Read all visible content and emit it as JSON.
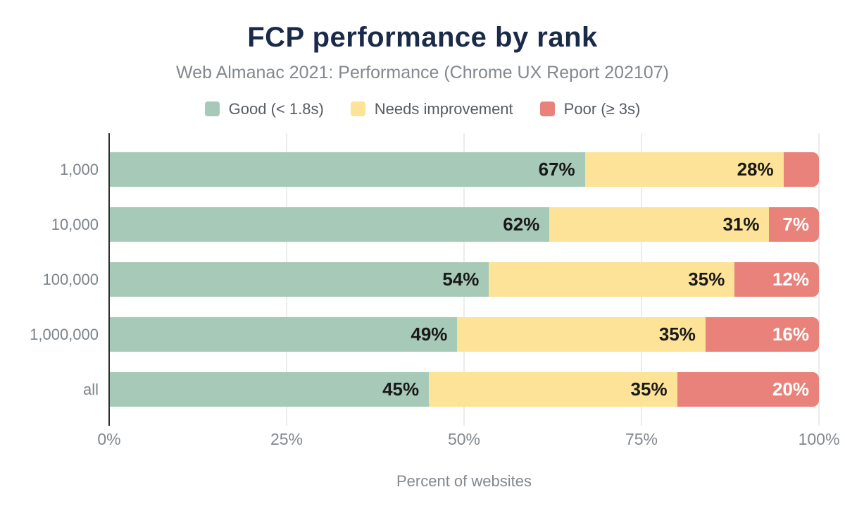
{
  "chart_data": {
    "type": "bar",
    "orientation": "horizontal-stacked",
    "title": "FCP performance by rank",
    "subtitle": "Web Almanac 2021: Performance (Chrome UX Report 202107)",
    "xlabel": "Percent of websites",
    "xlim": [
      0,
      100
    ],
    "x_ticks": [
      "0%",
      "25%",
      "50%",
      "75%",
      "100%"
    ],
    "x_tick_positions": [
      0,
      25,
      50,
      75,
      100
    ],
    "grid_positions": [
      25,
      50,
      75,
      100
    ],
    "legend_position": "top",
    "categories": [
      "1,000",
      "10,000",
      "100,000",
      "1,000,000",
      "all"
    ],
    "series": [
      {
        "name": "Good (< 1.8s)",
        "color": "#a7cab8",
        "label_color": "#191919",
        "values": [
          67,
          62,
          54,
          49,
          45
        ],
        "labels": [
          "67%",
          "62%",
          "54%",
          "49%",
          "45%"
        ]
      },
      {
        "name": "Needs improvement",
        "color": "#fce398",
        "label_color": "#191919",
        "values": [
          28,
          31,
          35,
          35,
          35
        ],
        "labels": [
          "28%",
          "31%",
          "35%",
          "35%",
          "35%"
        ]
      },
      {
        "name": "Poor (≥ 3s)",
        "color": "#e8827a",
        "label_color": "#ffffff",
        "values": [
          5,
          7,
          12,
          16,
          20
        ],
        "labels": [
          "",
          "7%",
          "12%",
          "16%",
          "20%"
        ]
      }
    ]
  },
  "colors": {
    "title": "#1a2b49",
    "subtitle": "#82888e",
    "axis_line": "#2e2e2e",
    "gridline": "#ececec",
    "good": "#a7cab8",
    "needs_improvement": "#fce398",
    "poor": "#e8827a"
  }
}
